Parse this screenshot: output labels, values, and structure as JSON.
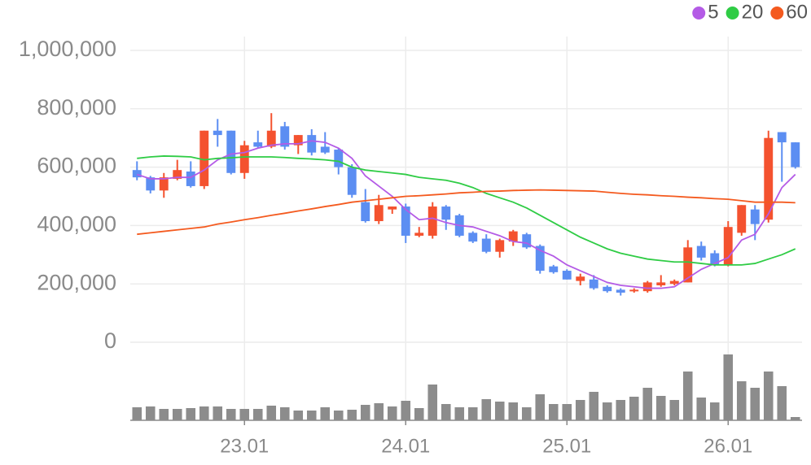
{
  "chart_data": {
    "type": "candlestick",
    "categories": [
      null,
      null,
      null,
      null,
      null,
      null,
      null,
      null,
      "23.01",
      null,
      null,
      null,
      null,
      null,
      null,
      null,
      null,
      null,
      null,
      null,
      "24.01",
      null,
      null,
      null,
      null,
      null,
      null,
      null,
      null,
      null,
      null,
      null,
      "25.01",
      null,
      null,
      null,
      null,
      null,
      null,
      null,
      null,
      null,
      null,
      null,
      "26.01",
      null,
      null,
      null,
      null,
      null
    ],
    "open": [
      590000,
      565000,
      520000,
      560000,
      585000,
      535000,
      725000,
      725000,
      580000,
      685000,
      670000,
      740000,
      675000,
      710000,
      670000,
      660000,
      600000,
      480000,
      415000,
      455000,
      465000,
      365000,
      365000,
      465000,
      435000,
      375000,
      355000,
      310000,
      345000,
      370000,
      330000,
      260000,
      245000,
      210000,
      215000,
      190000,
      180000,
      175000,
      175000,
      195000,
      200000,
      205000,
      330000,
      305000,
      265000,
      375000,
      455000,
      420000,
      720000,
      685000
    ],
    "high": [
      620000,
      570000,
      580000,
      625000,
      620000,
      725000,
      765000,
      725000,
      690000,
      725000,
      785000,
      755000,
      710000,
      730000,
      720000,
      665000,
      610000,
      525000,
      505000,
      465000,
      475000,
      395000,
      480000,
      470000,
      440000,
      380000,
      370000,
      355000,
      385000,
      375000,
      335000,
      265000,
      250000,
      235000,
      230000,
      195000,
      185000,
      185000,
      210000,
      230000,
      215000,
      350000,
      345000,
      315000,
      415000,
      470000,
      470000,
      725000,
      720000,
      685000
    ],
    "low": [
      555000,
      510000,
      495000,
      555000,
      530000,
      525000,
      670000,
      575000,
      560000,
      665000,
      665000,
      660000,
      645000,
      640000,
      645000,
      575000,
      495000,
      410000,
      405000,
      440000,
      340000,
      360000,
      355000,
      385000,
      360000,
      340000,
      305000,
      290000,
      330000,
      320000,
      235000,
      235000,
      215000,
      195000,
      180000,
      170000,
      160000,
      170000,
      170000,
      190000,
      195000,
      205000,
      280000,
      260000,
      260000,
      365000,
      350000,
      410000,
      550000,
      595000
    ],
    "close": [
      565000,
      520000,
      565000,
      590000,
      535000,
      725000,
      710000,
      580000,
      675000,
      670000,
      725000,
      670000,
      710000,
      650000,
      650000,
      600000,
      505000,
      415000,
      470000,
      465000,
      365000,
      375000,
      465000,
      420000,
      365000,
      345000,
      310000,
      350000,
      380000,
      325000,
      245000,
      240000,
      215000,
      225000,
      185000,
      175000,
      170000,
      180000,
      205000,
      205000,
      210000,
      325000,
      290000,
      265000,
      395000,
      470000,
      405000,
      700000,
      685000,
      600000
    ],
    "up_color": "#f4522f",
    "down_color": "#5c8ef2",
    "series": [
      {
        "name": "5",
        "color": "#b45be6",
        "values": [
          575000,
          560000,
          560000,
          565000,
          565000,
          590000,
          625000,
          645000,
          650000,
          665000,
          675000,
          680000,
          680000,
          690000,
          685000,
          665000,
          630000,
          570000,
          535000,
          500000,
          455000,
          420000,
          425000,
          410000,
          400000,
          395000,
          380000,
          365000,
          345000,
          340000,
          315000,
          295000,
          265000,
          245000,
          225000,
          205000,
          195000,
          190000,
          185000,
          185000,
          190000,
          220000,
          250000,
          270000,
          290000,
          350000,
          370000,
          440000,
          530000,
          575000
        ]
      },
      {
        "name": "20",
        "color": "#2fcc45",
        "values": [
          630000,
          635000,
          638000,
          637000,
          635000,
          625000,
          630000,
          632000,
          635000,
          635000,
          635000,
          633000,
          630000,
          628000,
          625000,
          620000,
          600000,
          590000,
          585000,
          580000,
          575000,
          565000,
          560000,
          555000,
          545000,
          530000,
          510000,
          495000,
          480000,
          460000,
          435000,
          410000,
          385000,
          360000,
          340000,
          320000,
          305000,
          295000,
          285000,
          280000,
          275000,
          275000,
          270000,
          265000,
          265000,
          265000,
          270000,
          285000,
          300000,
          320000
        ]
      },
      {
        "name": "60",
        "color": "#f45a1f",
        "values": [
          370000,
          375000,
          380000,
          385000,
          390000,
          395000,
          405000,
          412000,
          420000,
          427000,
          435000,
          442000,
          450000,
          457000,
          465000,
          472000,
          480000,
          485000,
          490000,
          495000,
          500000,
          502000,
          505000,
          508000,
          512000,
          514000,
          517000,
          518000,
          520000,
          521000,
          522000,
          521000,
          520000,
          519000,
          518000,
          514000,
          510000,
          507000,
          505000,
          502000,
          500000,
          497000,
          495000,
          492000,
          490000,
          485000,
          480000,
          480000,
          480000,
          478000
        ]
      }
    ],
    "volume": {
      "color": "#8c8c8c",
      "values": [
        16,
        17,
        14,
        14,
        15,
        17,
        17,
        14,
        14,
        14,
        18,
        16,
        12,
        12,
        16,
        12,
        13,
        19,
        21,
        17,
        24,
        15,
        44,
        20,
        16,
        16,
        26,
        23,
        22,
        16,
        32,
        20,
        20,
        25,
        35,
        22,
        25,
        29,
        40,
        30,
        25,
        60,
        28,
        22,
        81,
        48,
        40,
        60,
        42,
        4
      ]
    },
    "ylim": [
      0,
      1000000
    ],
    "yticks": [
      0,
      {
        "value": 200000,
        "label": "200,000"
      },
      {
        "value": 400000,
        "label": "400,000"
      },
      {
        "value": 600000,
        "label": "600,000"
      },
      {
        "value": 800000,
        "label": "800,000"
      },
      {
        "value": 1000000,
        "label": "1,000,000"
      }
    ],
    "grid": true
  }
}
